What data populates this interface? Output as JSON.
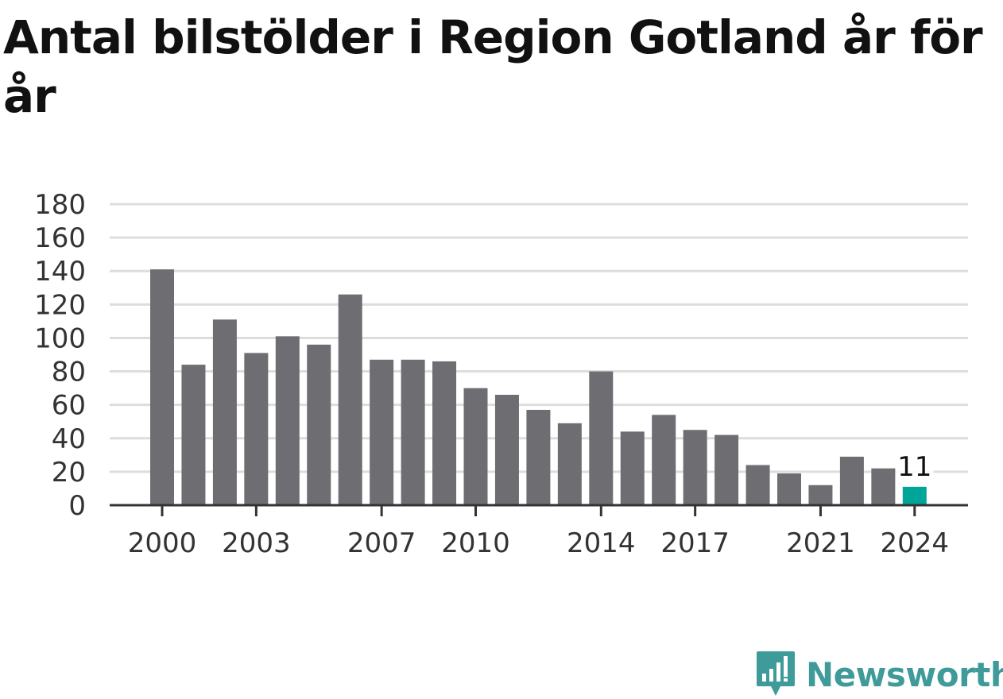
{
  "title": "Antal bilstölder i Region Gotland år för år",
  "brand": {
    "name": "Newsworthy",
    "icon": "newsworthy-logo-icon",
    "color": "#3f9b9a"
  },
  "chart_data": {
    "type": "bar",
    "title": "Antal bilstölder i Region Gotland år för år",
    "xlabel": "",
    "ylabel": "",
    "categories": [
      "2000",
      "2001",
      "2002",
      "2003",
      "2004",
      "2005",
      "2006",
      "2007",
      "2008",
      "2009",
      "2010",
      "2011",
      "2012",
      "2013",
      "2014",
      "2015",
      "2016",
      "2017",
      "2018",
      "2019",
      "2020",
      "2021",
      "2022",
      "2023",
      "2024"
    ],
    "values": [
      141,
      84,
      111,
      91,
      101,
      96,
      126,
      87,
      87,
      86,
      70,
      66,
      57,
      49,
      80,
      44,
      54,
      45,
      42,
      24,
      19,
      12,
      29,
      22,
      11
    ],
    "x_tick_labels": [
      "2000",
      "2003",
      "2007",
      "2010",
      "2014",
      "2017",
      "2021",
      "2024"
    ],
    "y_ticks": [
      0,
      20,
      40,
      60,
      80,
      100,
      120,
      140,
      160,
      180
    ],
    "ylim": [
      0,
      180
    ],
    "grid": true,
    "colors": {
      "bar": "#6e6d72",
      "highlight": "#00a59a",
      "grid": "#dddddd",
      "axis": "#333333"
    },
    "highlight": {
      "category": "2024",
      "label": "11"
    }
  }
}
